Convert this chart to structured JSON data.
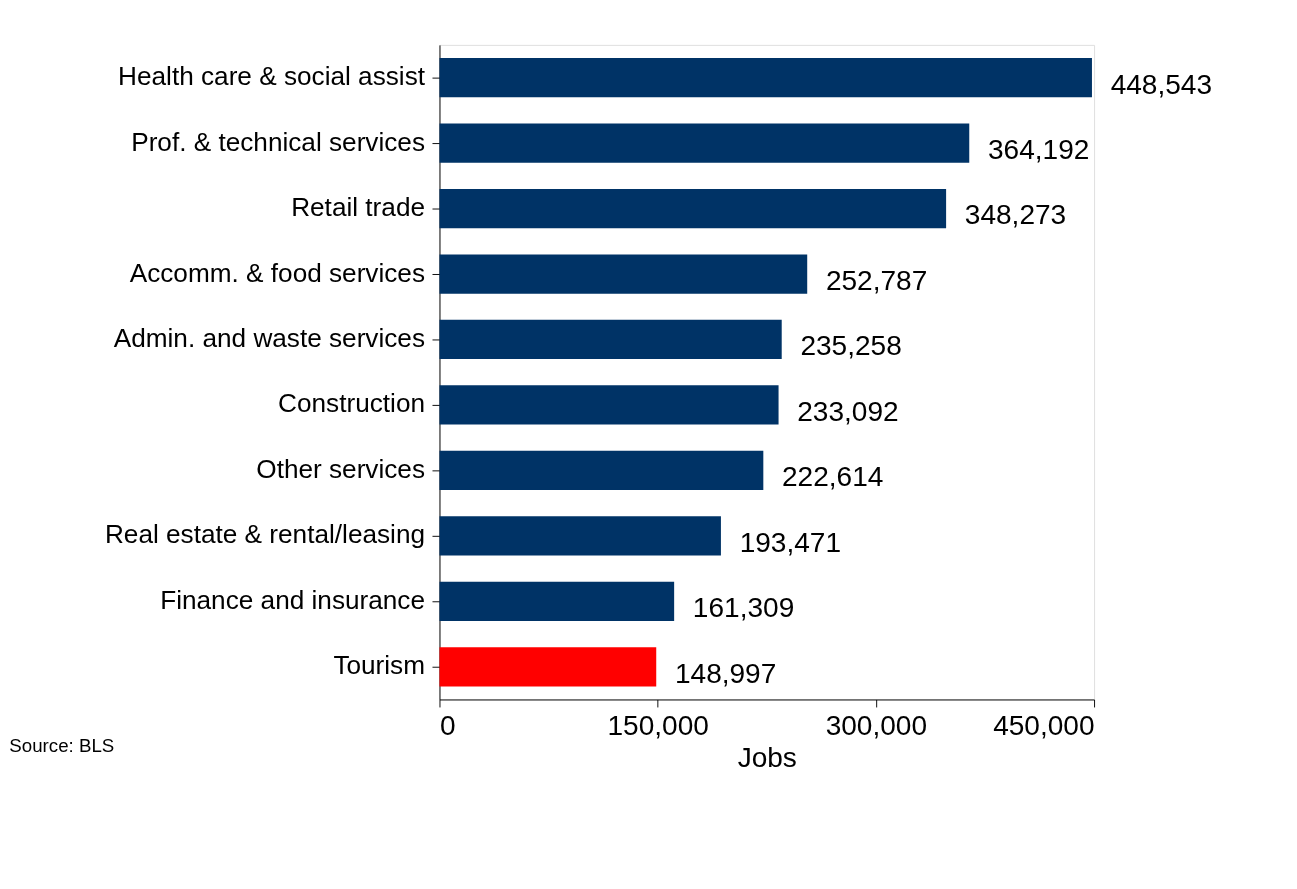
{
  "chart_data": {
    "type": "bar",
    "orientation": "horizontal",
    "xlabel": "Jobs",
    "categories": [
      "Health care & social assist",
      "Prof. & technical services",
      "Retail trade",
      "Accomm. & food services",
      "Admin. and waste services",
      "Construction",
      "Other services",
      "Real estate & rental/leasing",
      "Finance and insurance",
      "Tourism"
    ],
    "values": [
      448543,
      364192,
      348273,
      252787,
      235258,
      233092,
      222614,
      193471,
      161309,
      148997
    ],
    "value_labels": [
      "448,543",
      "364,192",
      "348,273",
      "252,787",
      "235,258",
      "233,092",
      "222,614",
      "193,471",
      "161,309",
      "148,997"
    ],
    "colors": [
      "#003366",
      "#003366",
      "#003366",
      "#003366",
      "#003366",
      "#003366",
      "#003366",
      "#003366",
      "#003366",
      "#ff0000"
    ],
    "xlim": [
      0,
      450000
    ],
    "xticks": [
      {
        "value": 0,
        "label": "0"
      },
      {
        "value": 150000,
        "label": "150,000"
      },
      {
        "value": 300000,
        "label": "300,000"
      },
      {
        "value": 450000,
        "label": "450,000"
      }
    ],
    "grid": false,
    "annotations": [
      "Source: BLS"
    ]
  }
}
